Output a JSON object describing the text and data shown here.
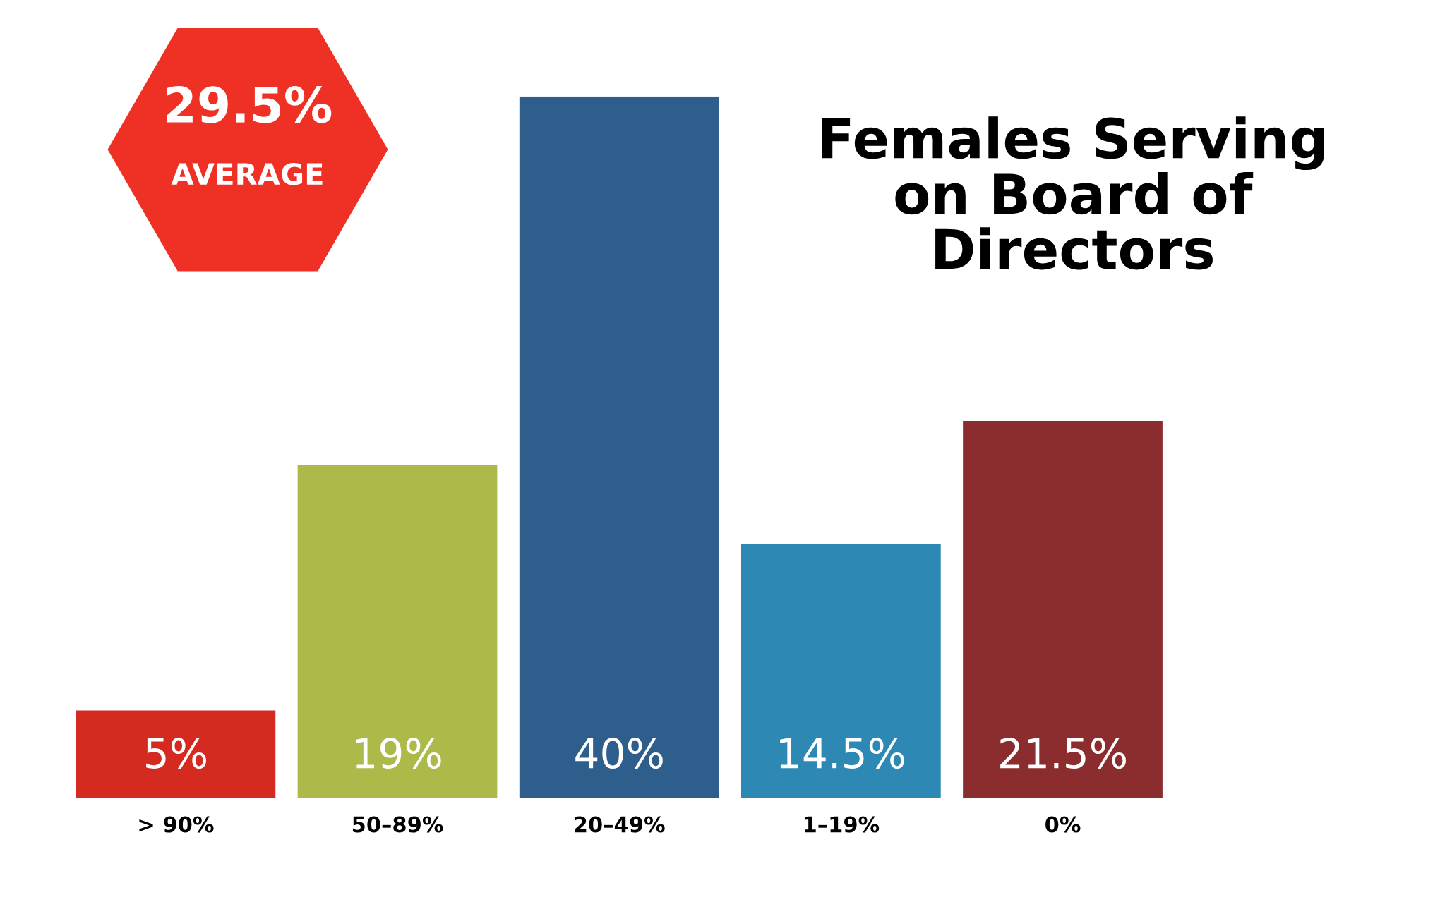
{
  "chart_data": {
    "type": "bar",
    "title": "Females Serving\non Board of\nDirectors",
    "categories": [
      "> 90%",
      "50–89%",
      "20–49%",
      "1–19%",
      "0%"
    ],
    "values": [
      5,
      19,
      40,
      14.5,
      21.5
    ],
    "colors": [
      "#d42a20",
      "#adba4a",
      "#2e5e8c",
      "#2e88b4",
      "#8b2c2e"
    ],
    "value_labels": [
      "5%",
      "19%",
      "40%",
      "14.5%",
      "21.5%"
    ],
    "annotations": [
      "29.5%",
      "AVERAGE"
    ],
    "grid": false,
    "legend": false
  }
}
